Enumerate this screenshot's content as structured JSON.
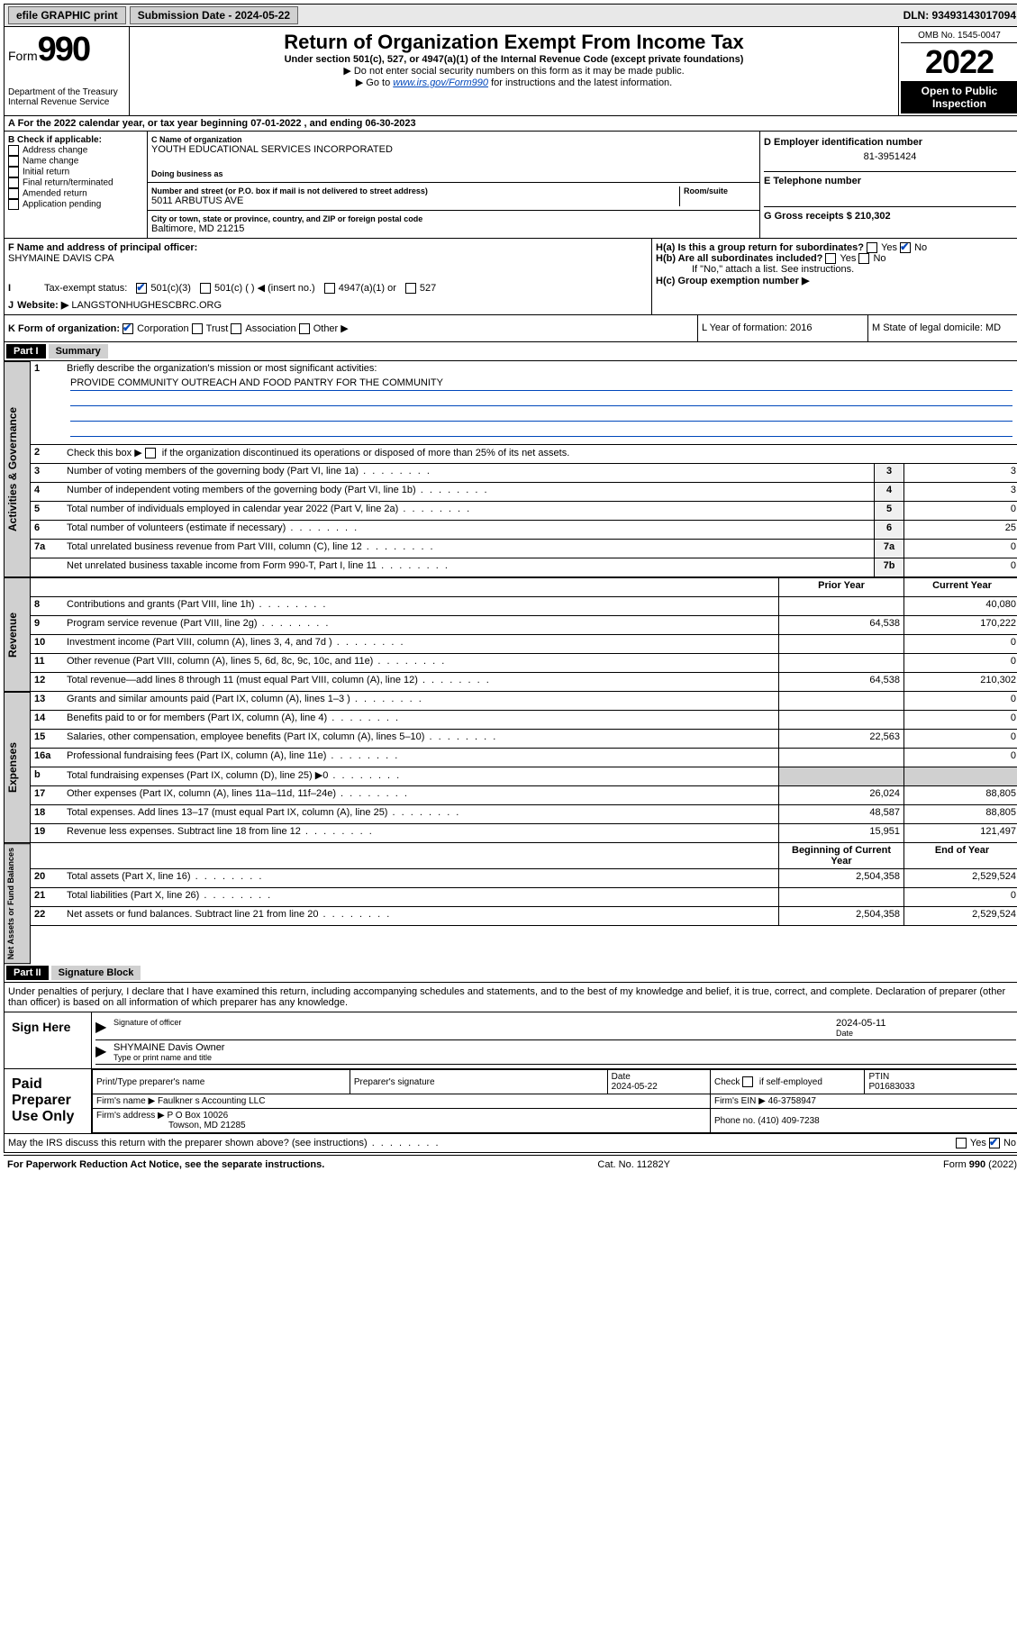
{
  "header": {
    "efile": "efile GRAPHIC print",
    "submission": "Submission Date - 2024-05-22",
    "dln": "DLN: 93493143017094"
  },
  "formHeader": {
    "form": "Form",
    "num": "990",
    "title": "Return of Organization Exempt From Income Tax",
    "sub": "Under section 501(c), 527, or 4947(a)(1) of the Internal Revenue Code (except private foundations)",
    "note1": "▶ Do not enter social security numbers on this form as it may be made public.",
    "note2a": "▶ Go to ",
    "note2link": "www.irs.gov/Form990",
    "note2b": " for instructions and the latest information.",
    "omb": "OMB No. 1545-0047",
    "year": "2022",
    "open": "Open to Public Inspection"
  },
  "dept": "Department of the Treasury\nInternal Revenue Service",
  "lineA": "A For the 2022 calendar year, or tax year beginning 07-01-2022    , and ending 06-30-2023",
  "sectionB": {
    "label": "B Check if applicable:",
    "items": [
      "Address change",
      "Name change",
      "Initial return",
      "Final return/terminated",
      "Amended return",
      "Application pending"
    ],
    "cLabel": "C Name of organization",
    "cName": "YOUTH EDUCATIONAL SERVICES INCORPORATED",
    "dbaLabel": "Doing business as",
    "addrLabel": "Number and street (or P.O. box if mail is not delivered to street address)",
    "addr": "5011 ARBUTUS AVE",
    "roomLabel": "Room/suite",
    "cityLabel": "City or town, state or province, country, and ZIP or foreign postal code",
    "city": "Baltimore, MD  21215",
    "dLabel": "D Employer identification number",
    "dVal": "81-3951424",
    "eLabel": "E Telephone number",
    "gLabel": "G Gross receipts $ 210,302"
  },
  "rowF": {
    "fLabel": "F Name and address of principal officer:",
    "fName": "SHYMAINE DAVIS CPA",
    "ha": "H(a)  Is this a group return for subordinates?",
    "hb": "H(b)  Are all subordinates included?",
    "hbNote": "If \"No,\" attach a list. See instructions.",
    "hc": "H(c)  Group exemption number ▶",
    "yes": "Yes",
    "no": "No"
  },
  "taxStatus": {
    "label": "Tax-exempt status:",
    "opt1": "501(c)(3)",
    "opt2": "501(c) (  ) ◀ (insert no.)",
    "opt3": "4947(a)(1) or",
    "opt4": "527"
  },
  "website": {
    "label": "Website: ▶",
    "val": "LANGSTONHUGHESCBRC.ORG"
  },
  "rowK": {
    "k": "K Form of organization:",
    "kopts": [
      "Corporation",
      "Trust",
      "Association",
      "Other ▶"
    ],
    "l": "L Year of formation: 2016",
    "m": "M State of legal domicile: MD"
  },
  "part1": {
    "header": "Part I",
    "title": "Summary",
    "q1": "Briefly describe the organization's mission or most significant activities:",
    "q1val": "PROVIDE COMMUNITY OUTREACH AND FOOD PANTRY FOR THE COMMUNITY",
    "q2": "Check this box ▶       if the organization discontinued its operations or disposed of more than 25% of its net assets.",
    "rows1": [
      {
        "n": "3",
        "d": "Number of voting members of the governing body (Part VI, line 1a)",
        "bl": "3",
        "v": "3"
      },
      {
        "n": "4",
        "d": "Number of independent voting members of the governing body (Part VI, line 1b)",
        "bl": "4",
        "v": "3"
      },
      {
        "n": "5",
        "d": "Total number of individuals employed in calendar year 2022 (Part V, line 2a)",
        "bl": "5",
        "v": "0"
      },
      {
        "n": "6",
        "d": "Total number of volunteers (estimate if necessary)",
        "bl": "6",
        "v": "25"
      },
      {
        "n": "7a",
        "d": "Total unrelated business revenue from Part VIII, column (C), line 12",
        "bl": "7a",
        "v": "0"
      },
      {
        "n": "",
        "d": "Net unrelated business taxable income from Form 990-T, Part I, line 11",
        "bl": "7b",
        "v": "0"
      }
    ],
    "priorLabel": "Prior Year",
    "currentLabel": "Current Year",
    "revenue": [
      {
        "n": "8",
        "d": "Contributions and grants (Part VIII, line 1h)",
        "p": "",
        "c": "40,080"
      },
      {
        "n": "9",
        "d": "Program service revenue (Part VIII, line 2g)",
        "p": "64,538",
        "c": "170,222"
      },
      {
        "n": "10",
        "d": "Investment income (Part VIII, column (A), lines 3, 4, and 7d )",
        "p": "",
        "c": "0"
      },
      {
        "n": "11",
        "d": "Other revenue (Part VIII, column (A), lines 5, 6d, 8c, 9c, 10c, and 11e)",
        "p": "",
        "c": "0"
      },
      {
        "n": "12",
        "d": "Total revenue—add lines 8 through 11 (must equal Part VIII, column (A), line 12)",
        "p": "64,538",
        "c": "210,302"
      }
    ],
    "expenses": [
      {
        "n": "13",
        "d": "Grants and similar amounts paid (Part IX, column (A), lines 1–3 )",
        "p": "",
        "c": "0"
      },
      {
        "n": "14",
        "d": "Benefits paid to or for members (Part IX, column (A), line 4)",
        "p": "",
        "c": "0"
      },
      {
        "n": "15",
        "d": "Salaries, other compensation, employee benefits (Part IX, column (A), lines 5–10)",
        "p": "22,563",
        "c": "0"
      },
      {
        "n": "16a",
        "d": "Professional fundraising fees (Part IX, column (A), line 11e)",
        "p": "",
        "c": "0"
      },
      {
        "n": "b",
        "d": "Total fundraising expenses (Part IX, column (D), line 25) ▶0",
        "p": "shaded",
        "c": "shaded"
      },
      {
        "n": "17",
        "d": "Other expenses (Part IX, column (A), lines 11a–11d, 11f–24e)",
        "p": "26,024",
        "c": "88,805"
      },
      {
        "n": "18",
        "d": "Total expenses. Add lines 13–17 (must equal Part IX, column (A), line 25)",
        "p": "48,587",
        "c": "88,805"
      },
      {
        "n": "19",
        "d": "Revenue less expenses. Subtract line 18 from line 12",
        "p": "15,951",
        "c": "121,497"
      }
    ],
    "beginLabel": "Beginning of Current Year",
    "endLabel": "End of Year",
    "netassets": [
      {
        "n": "20",
        "d": "Total assets (Part X, line 16)",
        "p": "2,504,358",
        "c": "2,529,524"
      },
      {
        "n": "21",
        "d": "Total liabilities (Part X, line 26)",
        "p": "",
        "c": "0"
      },
      {
        "n": "22",
        "d": "Net assets or fund balances. Subtract line 21 from line 20",
        "p": "2,504,358",
        "c": "2,529,524"
      }
    ]
  },
  "sideLabels": {
    "gov": "Activities & Governance",
    "rev": "Revenue",
    "exp": "Expenses",
    "net": "Net Assets or Fund Balances"
  },
  "part2": {
    "header": "Part II",
    "title": "Signature Block",
    "decl": "Under penalties of perjury, I declare that I have examined this return, including accompanying schedules and statements, and to the best of my knowledge and belief, it is true, correct, and complete. Declaration of preparer (other than officer) is based on all information of which preparer has any knowledge.",
    "signHere": "Sign Here",
    "sigOfficer": "Signature of officer",
    "sigDate": "2024-05-11",
    "dateLabel": "Date",
    "sigName": "SHYMAINE Davis Owner",
    "sigNameLabel": "Type or print name and title",
    "paid": "Paid Preparer Use Only",
    "prepRows": {
      "h1": "Print/Type preparer's name",
      "h2": "Preparer's signature",
      "h3": "Date",
      "h3v": "2024-05-22",
      "h4": "Check        if self-employed",
      "h5": "PTIN",
      "h5v": "P01683033",
      "firm": "Firm's name     ▶ Faulkner s Accounting LLC",
      "ein": "Firm's EIN ▶ 46-3758947",
      "addr": "Firm's address ▶ P O Box 10026",
      "addr2": "Towson, MD  21285",
      "phone": "Phone no. (410) 409-7238"
    },
    "discuss": "May the IRS discuss this return with the preparer shown above? (see instructions)"
  },
  "footer": {
    "left": "For Paperwork Reduction Act Notice, see the separate instructions.",
    "mid": "Cat. No. 11282Y",
    "right": "Form 990 (2022)"
  }
}
